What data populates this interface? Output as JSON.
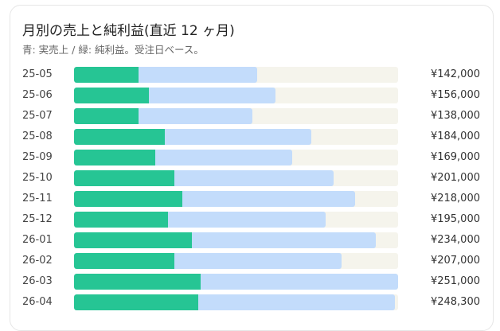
{
  "card": {
    "title": "月別の売上と純利益(直近 12 ヶ月)",
    "subtitle": "青: 実売上 / 緑: 純利益。受注日ベース。"
  },
  "colors": {
    "revenue": "#c3dcfb",
    "profit": "#26c594",
    "track": "#f5f4ec"
  },
  "chart_data": {
    "type": "bar",
    "orientation": "horizontal",
    "title": "月別の売上と純利益(直近 12 ヶ月)",
    "subtitle": "青: 実売上 / 緑: 純利益。受注日ベース。",
    "categories": [
      "25-05",
      "25-06",
      "25-07",
      "25-08",
      "25-09",
      "25-10",
      "25-11",
      "25-12",
      "26-01",
      "26-02",
      "26-03",
      "26-04"
    ],
    "value_labels": [
      "¥142,000",
      "¥156,000",
      "¥138,000",
      "¥184,000",
      "¥169,000",
      "¥201,000",
      "¥218,000",
      "¥195,000",
      "¥234,000",
      "¥207,000",
      "¥251,000",
      "¥248,300"
    ],
    "series": [
      {
        "name": "実売上",
        "values": [
          142000,
          156000,
          138000,
          184000,
          169000,
          201000,
          218000,
          195000,
          234000,
          207000,
          251000,
          248300
        ]
      },
      {
        "name": "純利益",
        "values": [
          50000,
          58000,
          50000,
          70000,
          63000,
          78000,
          84000,
          73000,
          91000,
          78000,
          98000,
          96000
        ]
      }
    ],
    "xlim": [
      0,
      251000
    ],
    "grid": false,
    "legend": "subtitle"
  }
}
